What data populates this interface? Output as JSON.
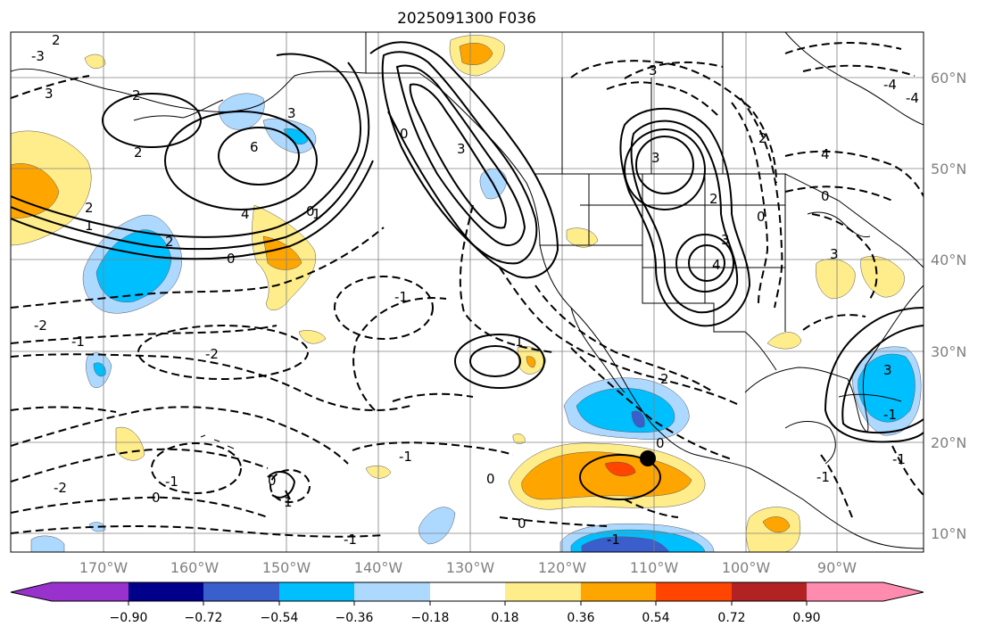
{
  "title": "2025091300 F036",
  "longitude_labels": [
    "170°W",
    "160°W",
    "150°W",
    "140°W",
    "130°W",
    "120°W",
    "110°W",
    "100°W",
    "90°W"
  ],
  "latitude_labels": [
    "60°N",
    "50°N",
    "40°N",
    "30°N",
    "20°N",
    "10°N"
  ],
  "colorbar": {
    "colors": [
      "#9932cc",
      "#00008b",
      "#3a5fcd",
      "#00bfff",
      "#add8ff",
      "#ffffff",
      "#ffec8b",
      "#ffa500",
      "#ff4500",
      "#b22222",
      "#ff8cb0"
    ],
    "tick_labels": [
      "−0.90",
      "−0.72",
      "−0.54",
      "−0.36",
      "−0.18",
      "0.18",
      "0.36",
      "0.54",
      "0.72",
      "0.90"
    ]
  },
  "contour_labels": [
    "2",
    "2",
    "3",
    "2",
    "6",
    "3",
    "4",
    "2",
    "1",
    "0",
    "2",
    "1",
    "0",
    "0",
    "3",
    "3",
    "3",
    "2",
    "2",
    "3",
    "0",
    "4",
    "4",
    "3",
    "0",
    "3",
    "-2",
    "-1",
    "-2",
    "-1",
    "1",
    "2",
    "-1",
    "-2",
    "-1",
    "0",
    "0",
    "1",
    "-1",
    "0",
    "-1",
    "-1",
    "0",
    "-1",
    "-3",
    "-4",
    "-4",
    "0",
    "-1"
  ],
  "marker": "storm-center-dot",
  "colors": {
    "coast": "#000000",
    "grid": "#808080",
    "contour": "#000000"
  }
}
